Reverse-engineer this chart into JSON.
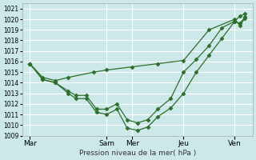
{
  "background_color": "#cce8e8",
  "grid_color": "#ffffff",
  "line_color": "#2d6e2d",
  "marker_color": "#2d6e2d",
  "xlabel": "Pression niveau de la mer( hPa )",
  "ylim": [
    1009,
    1021.5
  ],
  "yticks": [
    1009,
    1010,
    1011,
    1012,
    1013,
    1014,
    1015,
    1016,
    1017,
    1018,
    1019,
    1020,
    1021
  ],
  "xtick_labels": [
    "Mar",
    "Sam",
    "Mer",
    "Jeu",
    "Ven"
  ],
  "xtick_positions": [
    0,
    3,
    4,
    6,
    8
  ],
  "xlim": [
    -0.3,
    8.7
  ],
  "series": [
    {
      "x": [
        0,
        0.5,
        1.0,
        1.5,
        1.8,
        2.2,
        2.6,
        3.0,
        3.4,
        3.8,
        4.2,
        4.6,
        5.0,
        5.5,
        6.0,
        6.5,
        7.0,
        7.5,
        8.0,
        8.2,
        8.4
      ],
      "y": [
        1015.8,
        1014.3,
        1014.0,
        1013.0,
        1012.5,
        1012.5,
        1011.2,
        1011.0,
        1011.5,
        1009.7,
        1009.5,
        1009.8,
        1010.8,
        1011.6,
        1013.0,
        1015.0,
        1016.6,
        1018.2,
        1019.8,
        1020.3,
        1020.5
      ]
    },
    {
      "x": [
        0,
        0.5,
        1.0,
        1.5,
        1.8,
        2.2,
        2.6,
        3.0,
        3.4,
        3.8,
        4.2,
        4.6,
        5.0,
        5.5,
        6.0,
        6.5,
        7.0,
        7.5,
        8.0,
        8.2,
        8.4
      ],
      "y": [
        1015.8,
        1014.3,
        1014.0,
        1013.2,
        1012.8,
        1012.8,
        1011.5,
        1011.5,
        1012.0,
        1010.5,
        1010.2,
        1010.5,
        1011.5,
        1012.5,
        1015.0,
        1016.2,
        1017.5,
        1019.2,
        1019.8,
        1019.6,
        1020.2
      ]
    },
    {
      "x": [
        0,
        0.5,
        1.0,
        1.5,
        2.5,
        3.0,
        4.0,
        5.0,
        6.0,
        7.0,
        8.0,
        8.2,
        8.4
      ],
      "y": [
        1015.8,
        1014.5,
        1014.2,
        1014.5,
        1015.0,
        1015.2,
        1015.5,
        1015.8,
        1016.1,
        1019.0,
        1020.0,
        1019.4,
        1020.1
      ]
    }
  ]
}
